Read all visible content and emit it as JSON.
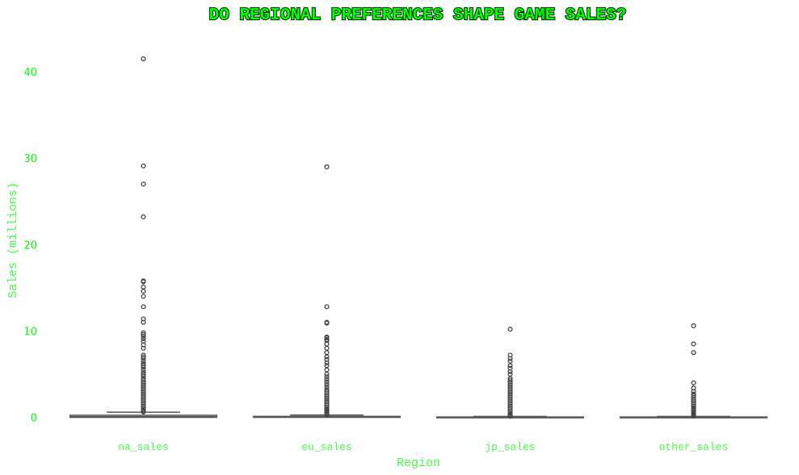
{
  "chart_data": {
    "type": "box",
    "title": "DO REGIONAL PREFERENCES SHAPE GAME SALES?",
    "xlabel": "Region",
    "ylabel": "Sales (millions)",
    "ylim": [
      -1.5,
      43.5
    ],
    "yticks": [
      0,
      10,
      20,
      30,
      40
    ],
    "grid": false,
    "categories": [
      "na_sales",
      "eu_sales",
      "jp_sales",
      "other_sales"
    ],
    "boxes": [
      {
        "name": "na_sales",
        "min": 0,
        "q1": 0,
        "median": 0.08,
        "q3": 0.24,
        "max": 0.6,
        "outliers": [
          41.5,
          29.1,
          27.0,
          23.2,
          15.8,
          15.7,
          15.1,
          14.6,
          14.0,
          12.8,
          11.4,
          11.0,
          9.8,
          9.6,
          9.4,
          9.1,
          8.8,
          8.4,
          8.0,
          7.2,
          7.0,
          6.8,
          6.5,
          6.2,
          6.0,
          5.8,
          5.5,
          5.2,
          5.0,
          4.8,
          4.5,
          4.3,
          4.1,
          3.9,
          3.7,
          3.5,
          3.3,
          3.1,
          2.9,
          2.7,
          2.5,
          2.3,
          2.1,
          1.9,
          1.7,
          1.5,
          1.3,
          1.1,
          0.9,
          0.75,
          0.62
        ]
      },
      {
        "name": "eu_sales",
        "min": 0,
        "q1": 0,
        "median": 0.02,
        "q3": 0.11,
        "max": 0.27,
        "outliers": [
          29.0,
          12.8,
          11.0,
          10.9,
          9.3,
          9.2,
          9.0,
          8.9,
          8.5,
          8.0,
          7.5,
          7.0,
          6.7,
          6.3,
          6.0,
          5.5,
          5.0,
          4.7,
          4.4,
          4.1,
          3.8,
          3.5,
          3.2,
          3.0,
          2.8,
          2.6,
          2.4,
          2.2,
          2.0,
          1.8,
          1.6,
          1.4,
          1.2,
          1.0,
          0.85,
          0.7,
          0.55,
          0.42,
          0.3
        ]
      },
      {
        "name": "jp_sales",
        "min": 0,
        "q1": 0,
        "median": 0,
        "q3": 0.04,
        "max": 0.1,
        "outliers": [
          10.2,
          7.2,
          6.8,
          6.5,
          6.0,
          5.7,
          5.3,
          5.0,
          4.5,
          4.3,
          4.1,
          3.9,
          3.7,
          3.5,
          3.3,
          3.1,
          2.9,
          2.7,
          2.5,
          2.3,
          2.1,
          1.9,
          1.7,
          1.5,
          1.3,
          1.1,
          0.9,
          0.7,
          0.5,
          0.35,
          0.2,
          0.12
        ]
      },
      {
        "name": "other_sales",
        "min": 0,
        "q1": 0,
        "median": 0.01,
        "q3": 0.04,
        "max": 0.1,
        "outliers": [
          10.6,
          8.5,
          7.5,
          4.0,
          3.4,
          3.0,
          2.7,
          2.5,
          2.3,
          2.1,
          1.9,
          1.7,
          1.5,
          1.3,
          1.1,
          0.95,
          0.8,
          0.65,
          0.5,
          0.38,
          0.26,
          0.15
        ]
      }
    ],
    "colors": {
      "title": "#00ff00",
      "title_outline": "#003300",
      "ticks": "#00ff00",
      "labels": "#44ff44",
      "box": "#555555"
    }
  }
}
